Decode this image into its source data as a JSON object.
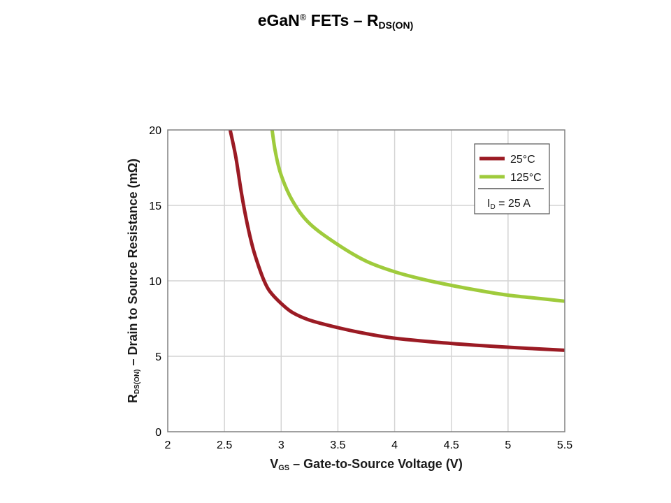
{
  "slide": {
    "title_main": "eGaN",
    "title_reg": "®",
    "title_mid": " FETs – R",
    "title_sub": "DS(ON)"
  },
  "chart_data": {
    "type": "line",
    "xlabel_main": "V",
    "xlabel_sub": "GS",
    "xlabel_rest": " – Gate-to-Source Voltage (V)",
    "ylabel_main": "R",
    "ylabel_sub": "DS(ON)",
    "ylabel_rest": " – Drain  to Source Resistance (mΩ)",
    "xlim": [
      2,
      5.5
    ],
    "ylim": [
      0,
      20
    ],
    "x_ticks": [
      2,
      2.5,
      3,
      3.5,
      4,
      4.5,
      5,
      5.5
    ],
    "x_tick_labels": [
      "2",
      "2.5",
      "3",
      "3.5",
      "4",
      "4.5",
      "5",
      "5.5"
    ],
    "y_ticks": [
      0,
      5,
      10,
      15,
      20
    ],
    "y_tick_labels": [
      "0",
      "5",
      "10",
      "15",
      "20"
    ],
    "grid": true,
    "legend_position": "top-right",
    "legend_note": "I",
    "legend_note_sub": "D",
    "legend_note_rest": " = 25 A",
    "series": [
      {
        "name": "25°C",
        "color": "#9b1b24",
        "x": [
          2.55,
          2.6,
          2.65,
          2.7,
          2.75,
          2.8,
          2.85,
          2.9,
          3.0,
          3.1,
          3.25,
          3.5,
          3.75,
          4.0,
          4.5,
          5.0,
          5.5
        ],
        "y": [
          20,
          18.2,
          15.8,
          13.8,
          12.2,
          11.0,
          10.0,
          9.3,
          8.5,
          7.9,
          7.4,
          6.9,
          6.5,
          6.2,
          5.85,
          5.6,
          5.4
        ]
      },
      {
        "name": "125°C",
        "color": "#9fcb3c",
        "x": [
          2.92,
          2.95,
          3.0,
          3.1,
          3.25,
          3.5,
          3.75,
          4.0,
          4.25,
          4.5,
          4.75,
          5.0,
          5.25,
          5.5
        ],
        "y": [
          20,
          18.5,
          17.0,
          15.3,
          13.8,
          12.4,
          11.3,
          10.6,
          10.1,
          9.7,
          9.35,
          9.05,
          8.85,
          8.65
        ]
      }
    ]
  }
}
